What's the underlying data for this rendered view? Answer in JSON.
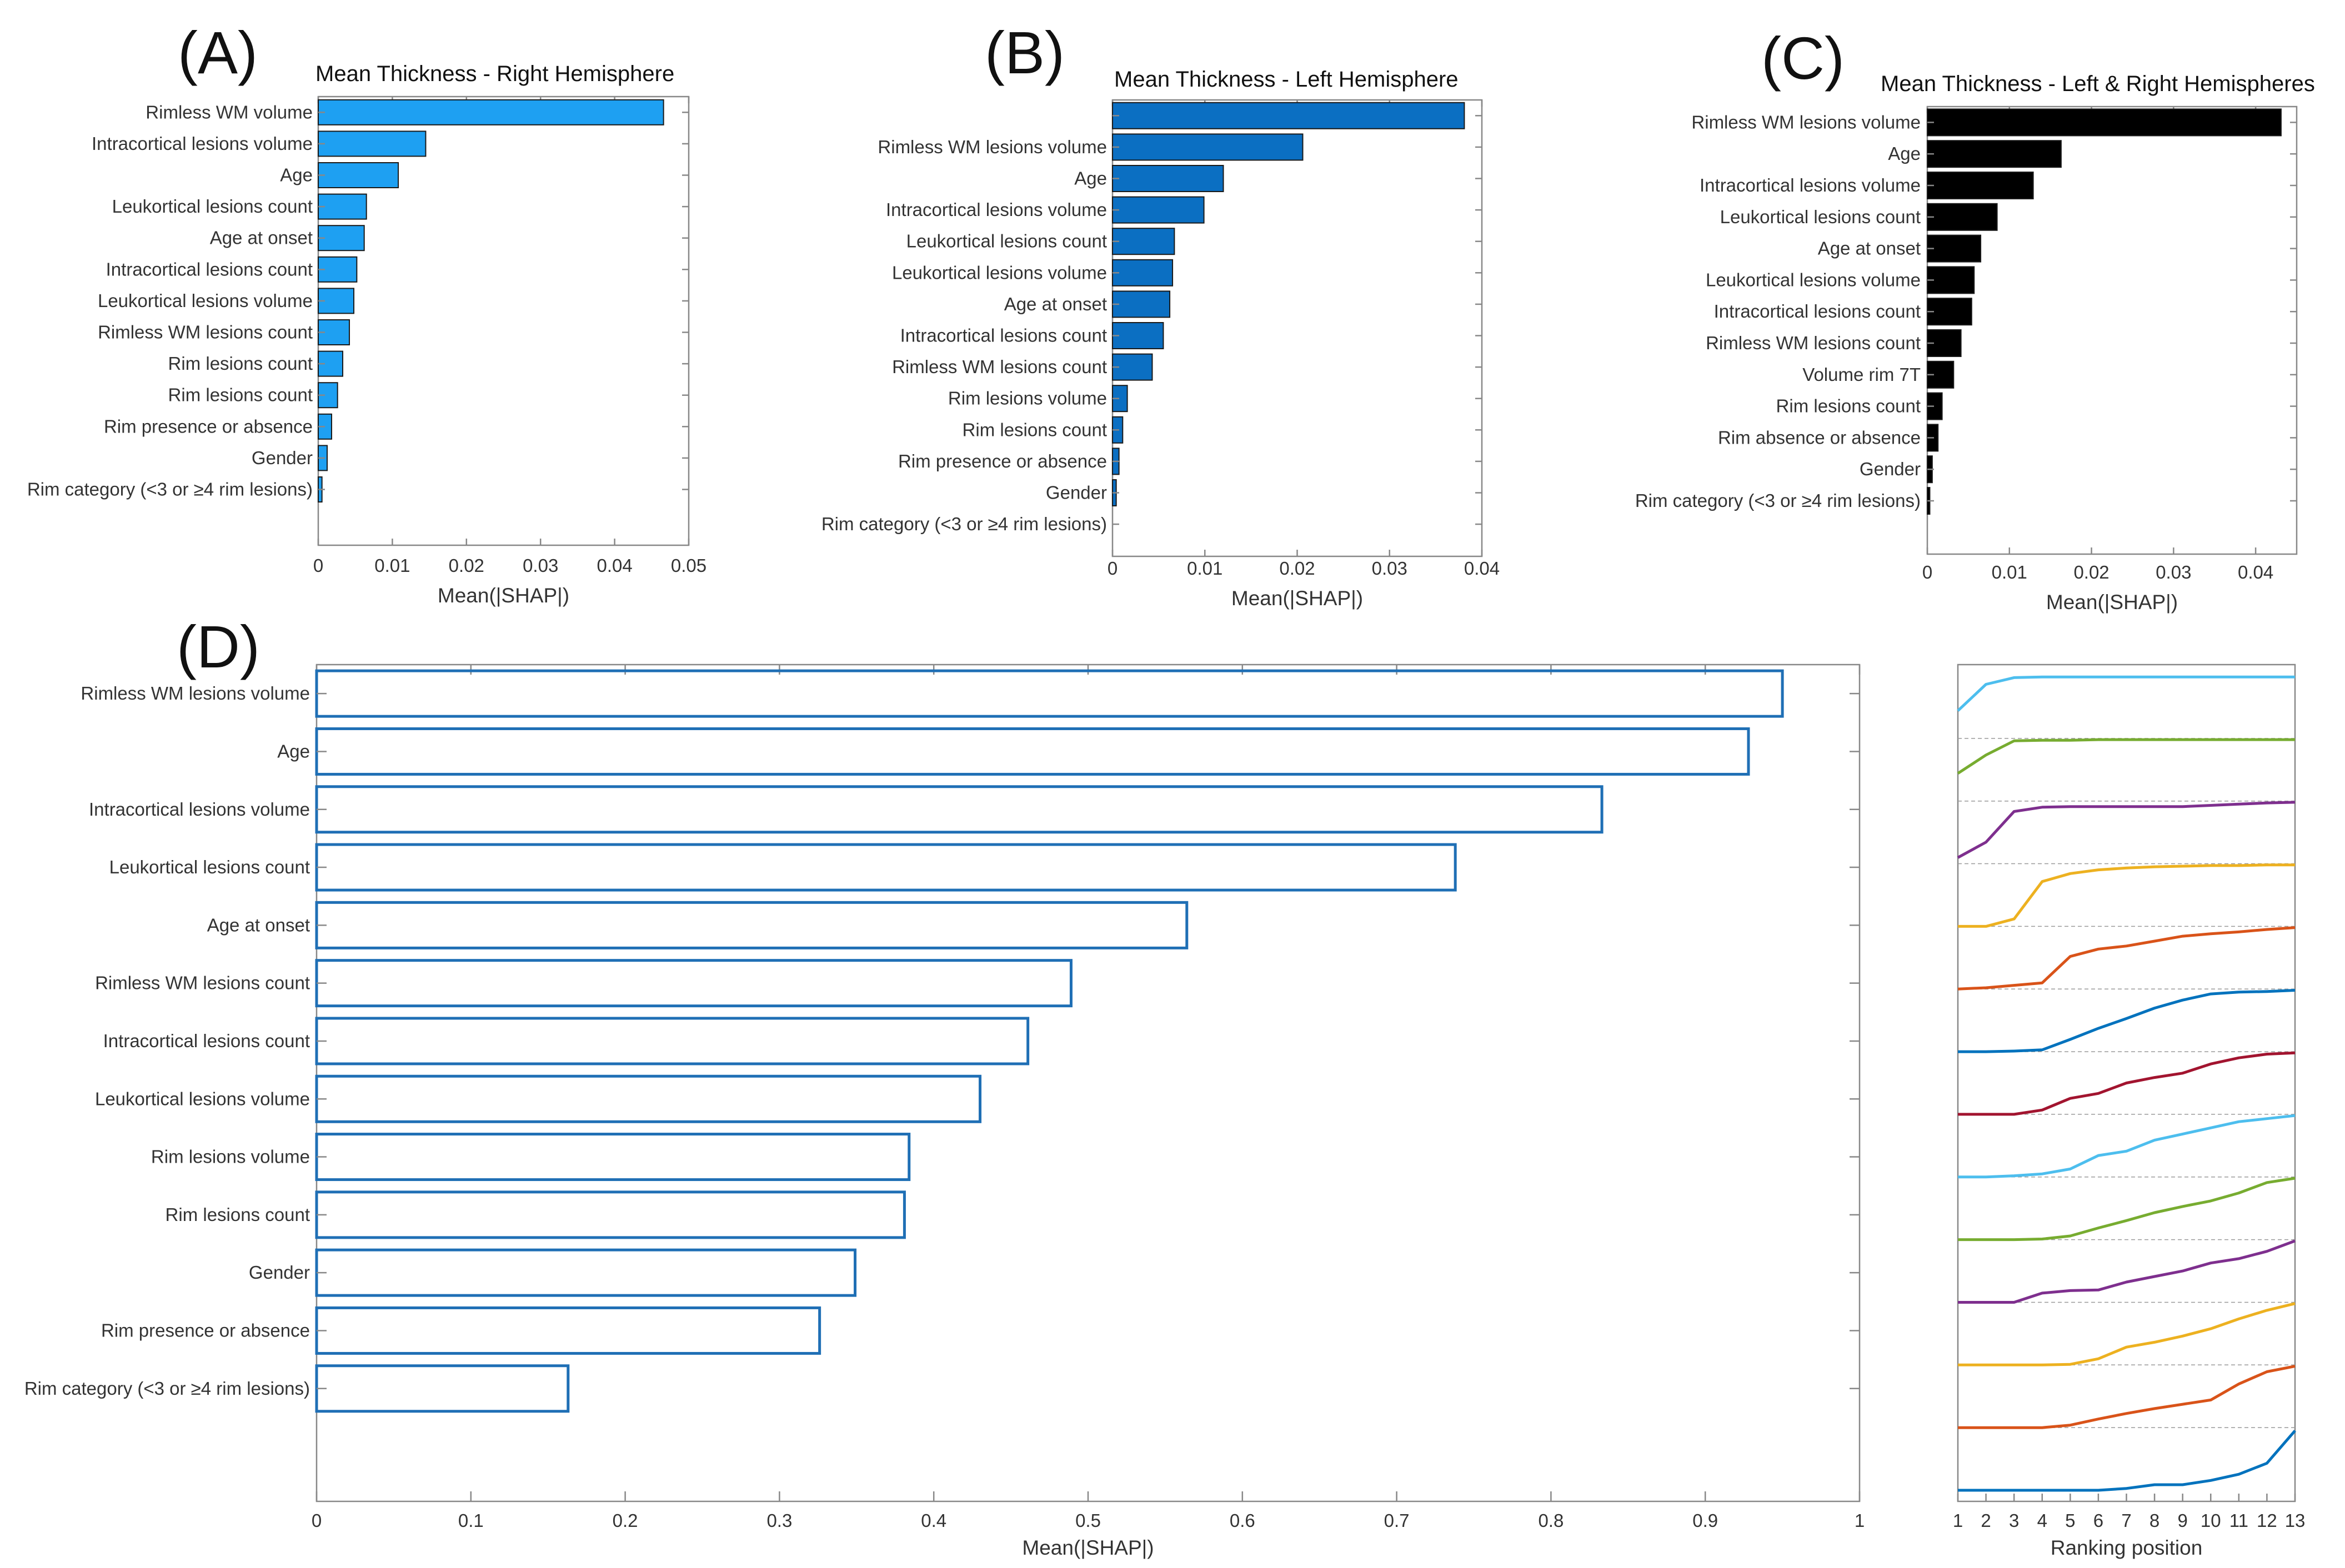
{
  "chart_data": [
    {
      "panel": "(A)",
      "type": "bar",
      "orientation": "horizontal",
      "title": "Mean Thickness - Right Hemisphere",
      "xlabel": "Mean(|SHAP|)",
      "xlim": [
        0,
        0.05
      ],
      "xticks": [
        0,
        0.01,
        0.02,
        0.03,
        0.04,
        0.05
      ],
      "xtick_labels": [
        "0",
        "0.01",
        "0.02",
        "0.03",
        "0.04",
        "0.05"
      ],
      "bar_color": "#1ea0f2",
      "categories": [
        "Rimless WM volume",
        "Intracortical lesions volume",
        "Age",
        "Leukortical lesions count",
        "Age at onset",
        "Intracortical lesions count",
        "Leukortical lesions volume",
        "Rimless WM lesions count",
        "Rim lesions count",
        "Rim lesions count",
        "Rim presence or absence",
        "Gender",
        "Rim category (<3 or ≥4 rim lesions)"
      ],
      "values": [
        0.0466,
        0.0145,
        0.0108,
        0.0065,
        0.0062,
        0.0052,
        0.0048,
        0.0042,
        0.0033,
        0.0026,
        0.0018,
        0.0012,
        0.0005
      ]
    },
    {
      "panel": "(B)",
      "type": "bar",
      "orientation": "horizontal",
      "title": "Mean Thickness - Left Hemisphere",
      "xlabel": "Mean(|SHAP|)",
      "xlim": [
        0,
        0.04
      ],
      "xticks": [
        0,
        0.01,
        0.02,
        0.03,
        0.04
      ],
      "xtick_labels": [
        "0",
        "0.01",
        "0.02",
        "0.03",
        "0.04"
      ],
      "bar_color": "#0b6fc2",
      "categories": [
        "",
        "Rimless WM lesions volume",
        "Age",
        "Intracortical lesions volume",
        "Leukortical lesions count",
        "Leukortical lesions volume",
        "Age at onset",
        "Intracortical lesions count",
        "Rimless WM lesions count",
        "Rim lesions volume",
        "Rim lesions count",
        "Rim presence or absence",
        "Gender",
        "Rim category (<3 or ≥4 rim lesions)"
      ],
      "values": [
        0.0381,
        0.0206,
        0.012,
        0.0099,
        0.0067,
        0.0065,
        0.0062,
        0.0055,
        0.0043,
        0.0016,
        0.0011,
        0.0007,
        0.0004,
        0
      ]
    },
    {
      "panel": "(C)",
      "type": "bar",
      "orientation": "horizontal",
      "title": "Mean Thickness - Left & Right Hemispheres",
      "xlabel": "Mean(|SHAP|)",
      "xlim": [
        0,
        0.045
      ],
      "xticks": [
        0,
        0.01,
        0.02,
        0.03,
        0.04
      ],
      "xtick_labels": [
        "0",
        "0.01",
        "0.02",
        "0.03",
        "0.04"
      ],
      "bar_color": "#000000",
      "categories": [
        "Rimless WM lesions volume",
        "Age",
        "Intracortical lesions volume",
        "Leukortical lesions count",
        "Age at onset",
        "Leukortical lesions volume",
        "Intracortical lesions count",
        "Rimless WM lesions count",
        "Volume  rim 7T",
        "Rim lesions count",
        "Rim absence or absence",
        "Gender",
        "Rim category (<3 or ≥4 rim lesions)"
      ],
      "values": [
        0.0431,
        0.0163,
        0.0129,
        0.0085,
        0.0065,
        0.0057,
        0.0054,
        0.0041,
        0.0032,
        0.0018,
        0.0013,
        0.0006,
        0.0003
      ]
    },
    {
      "panel": "(D)",
      "type": "bar",
      "orientation": "horizontal",
      "title": "",
      "xlabel": "Mean(|SHAP|)",
      "xlim": [
        0,
        1
      ],
      "xticks": [
        0,
        0.1,
        0.2,
        0.3,
        0.4,
        0.5,
        0.6,
        0.7,
        0.8,
        0.9,
        1
      ],
      "xtick_labels": [
        "0",
        "0.1",
        "0.2",
        "0.3",
        "0.4",
        "0.5",
        "0.6",
        "0.7",
        "0.8",
        "0.9",
        "1"
      ],
      "bar_color": "#1f6fb5",
      "categories": [
        "Rimless WM lesions volume",
        "Age",
        "Intracortical lesions volume",
        "Leukortical lesions count",
        "Age at onset",
        "Rimless WM lesions count",
        "Intracortical lesions count",
        "Leukortical lesions volume",
        "Rim lesions volume",
        "Rim lesions count",
        "Gender",
        "Rim presence or absence",
        "Rim category (<3 or ≥4 rim lesions)"
      ],
      "values": [
        0.95,
        0.928,
        0.833,
        0.738,
        0.564,
        0.489,
        0.461,
        0.43,
        0.384,
        0.381,
        0.349,
        0.326,
        0.163
      ]
    },
    {
      "panel": "ranking",
      "type": "line",
      "title": "",
      "xlabel": "Ranking position",
      "xlim": [
        1,
        13
      ],
      "xticks": [
        1,
        2,
        3,
        4,
        5,
        6,
        7,
        8,
        9,
        10,
        11,
        12,
        13
      ],
      "xtick_labels": [
        "1",
        "2",
        "3",
        "4",
        "5",
        "6",
        "7",
        "8",
        "9",
        "10",
        "11",
        "12",
        "13"
      ],
      "x": [
        1,
        2,
        3,
        4,
        5,
        6,
        7,
        8,
        9,
        10,
        11,
        12,
        13
      ],
      "series": [
        {
          "name": "Rimless WM lesions volume",
          "color": "#4dbeee",
          "values": [
            0.45,
            0.88,
            0.99,
            1,
            1,
            1,
            1,
            1,
            1,
            1,
            1,
            1,
            1
          ]
        },
        {
          "name": "Age",
          "color": "#77ac30",
          "values": [
            0.45,
            0.75,
            0.98,
            0.99,
            0.99,
            1,
            1,
            1,
            1,
            1,
            1,
            1,
            1
          ]
        },
        {
          "name": "Intracortical lesions volume",
          "color": "#7e2f8e",
          "values": [
            0.1,
            0.35,
            0.85,
            0.92,
            0.93,
            0.93,
            0.93,
            0.93,
            0.93,
            0.95,
            0.97,
            0.99,
            1
          ]
        },
        {
          "name": "Leukortical lesions count",
          "color": "#edb120",
          "values": [
            0,
            0,
            0.12,
            0.73,
            0.86,
            0.92,
            0.95,
            0.97,
            0.98,
            0.99,
            0.99,
            1,
            1
          ]
        },
        {
          "name": "Age at onset",
          "color": "#d95319",
          "values": [
            0,
            0.02,
            0.06,
            0.1,
            0.53,
            0.65,
            0.7,
            0.78,
            0.86,
            0.9,
            0.93,
            0.97,
            1
          ]
        },
        {
          "name": "Rimless WM lesions count",
          "color": "#0072bd",
          "values": [
            0,
            0,
            0.01,
            0.03,
            0.2,
            0.38,
            0.54,
            0.71,
            0.84,
            0.94,
            0.97,
            0.98,
            1
          ]
        },
        {
          "name": "Intracortical lesions count",
          "color": "#a2142f",
          "values": [
            0,
            0,
            0,
            0.07,
            0.26,
            0.34,
            0.51,
            0.6,
            0.67,
            0.82,
            0.92,
            0.98,
            1
          ]
        },
        {
          "name": "Leukortical lesions volume",
          "color": "#4dbeee",
          "values": [
            0,
            0,
            0.02,
            0.05,
            0.13,
            0.35,
            0.42,
            0.6,
            0.7,
            0.8,
            0.9,
            0.95,
            1
          ]
        },
        {
          "name": "Rim lesions volume",
          "color": "#77ac30",
          "values": [
            0,
            0,
            0,
            0.01,
            0.06,
            0.19,
            0.31,
            0.44,
            0.54,
            0.63,
            0.76,
            0.93,
            1
          ]
        },
        {
          "name": "Rim lesions count",
          "color": "#7e2f8e",
          "values": [
            0,
            0,
            0,
            0.15,
            0.19,
            0.2,
            0.33,
            0.42,
            0.51,
            0.64,
            0.71,
            0.83,
            1
          ]
        },
        {
          "name": "Gender",
          "color": "#edb120",
          "values": [
            0,
            0,
            0,
            0,
            0.01,
            0.1,
            0.29,
            0.37,
            0.47,
            0.59,
            0.75,
            0.89,
            1
          ]
        },
        {
          "name": "Rim presence or absence",
          "color": "#d95319",
          "values": [
            0,
            0,
            0,
            0,
            0.04,
            0.14,
            0.23,
            0.31,
            0.38,
            0.45,
            0.71,
            0.91,
            1
          ]
        },
        {
          "name": "Rim category (<3 or ≥4 rim lesions)",
          "color": "#0072bd",
          "values": [
            0,
            0,
            0,
            0,
            0,
            0,
            0.03,
            0.09,
            0.09,
            0.16,
            0.26,
            0.44,
            0.97
          ]
        }
      ]
    }
  ]
}
